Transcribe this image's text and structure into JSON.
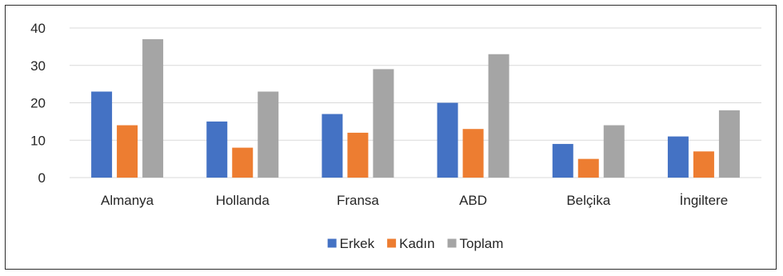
{
  "chart_data": {
    "type": "bar",
    "categories": [
      "Almanya",
      "Hollanda",
      "Fransa",
      "ABD",
      "Belçika",
      "İngiltere"
    ],
    "series": [
      {
        "name": "Erkek",
        "values": [
          23,
          15,
          17,
          20,
          9,
          11
        ],
        "color": "#4472C4"
      },
      {
        "name": "Kadın",
        "values": [
          14,
          8,
          12,
          13,
          5,
          7
        ],
        "color": "#ED7D31"
      },
      {
        "name": "Toplam",
        "values": [
          37,
          23,
          29,
          33,
          14,
          18
        ],
        "color": "#A5A5A5"
      }
    ],
    "ylim": [
      0,
      40
    ],
    "yticks": [
      0,
      10,
      20,
      30,
      40
    ],
    "grid": true,
    "gridColor": "#d9d9d9",
    "legend": "bottom"
  }
}
